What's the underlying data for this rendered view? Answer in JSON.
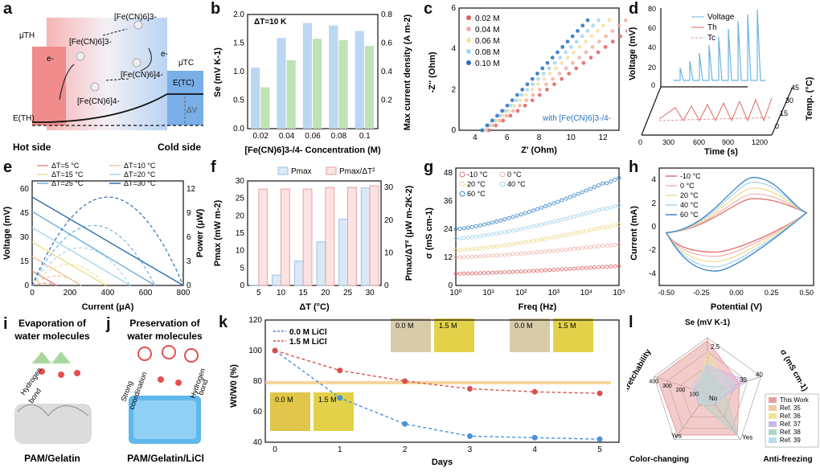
{
  "panels": {
    "a": {
      "letter": "a",
      "mu_th": "μ̄TH",
      "mu_tc": "μ̄TC",
      "fe3_top": "[Fe(CN)6]3-",
      "fe3_left": "[Fe(CN)6]3-",
      "fe4_mid": "[Fe(CN)6]4-",
      "fe4_bot": "[Fe(CN)6]4-",
      "e_left": "e-",
      "e_right": "e-",
      "eth": "E(TH)",
      "etc": "E(TC)",
      "dv": "ΔV",
      "hot": "Hot side",
      "cold": "Cold side"
    },
    "b": {
      "letter": "b",
      "dt": "ΔT=10 K"
    },
    "c": {
      "letter": "c",
      "note": "with [Fe(CN)6]3-/4-"
    },
    "d": {
      "letter": "d",
      "leg_v": "Voltage",
      "leg_th": "Th",
      "leg_tc": "Tc",
      "ylabel": "Voltage (mV)",
      "xlabel": "Time (s)",
      "zlabel": "Temp. (°C)",
      "yticks": [
        "0",
        "20",
        "40",
        "60",
        "80"
      ],
      "xticks": [
        "0",
        "300",
        "600",
        "900",
        "1200"
      ],
      "zticks": [
        "0",
        "15",
        "30",
        "45"
      ]
    },
    "e": {
      "letter": "e"
    },
    "f": {
      "letter": "f",
      "leg1": "Pmax",
      "leg2": "Pmax/ΔT²"
    },
    "g": {
      "letter": "g"
    },
    "h": {
      "letter": "h"
    },
    "i": {
      "letter": "i",
      "title1": "Evaporation of",
      "title2": "water molecules",
      "hb1": "Hydrogen",
      "hb2": "bond",
      "caption": "PAM/Gelatin"
    },
    "j": {
      "letter": "j",
      "title1": "Preservation of",
      "title2": "water molecules",
      "sc1": "Strong",
      "sc2": "coordination",
      "hb1": "Hydrogen",
      "hb2": "bond",
      "caption": "PAM/Gelatin/LiCl"
    },
    "k": {
      "letter": "k",
      "photo_labels": [
        "0.0 M",
        "1.5 M",
        "0.0 M",
        "1.5 M",
        "0.0 M",
        "1.5 M"
      ]
    },
    "l": {
      "letter": "l",
      "axes": [
        "Se (mV K-1)",
        "σ (mS cm-1)",
        "Anti-freezing",
        "Color-changing",
        "Stretchability"
      ],
      "yes": "Yes",
      "no": "No",
      "ticks_se": [
        "2.5"
      ],
      "ticks_sig": [
        "30",
        "40"
      ],
      "ticks_str": [
        "100",
        "200",
        "300",
        "400"
      ],
      "legend": [
        "This Work",
        "Ref. 35",
        "Ref. 36",
        "Ref. 37",
        "Ref. 38",
        "Ref. 39"
      ],
      "colors": [
        "#e8a0a0",
        "#f3c7a0",
        "#f1e39a",
        "#c9b7e6",
        "#a9d6c6",
        "#b9dcef"
      ]
    }
  },
  "chart_data": [
    {
      "panel": "b",
      "type": "bar",
      "title": "",
      "categories": [
        "0.02",
        "0.04",
        "0.06",
        "0.08",
        "0.1"
      ],
      "xlabel": "[Fe(CN)6]3-/4- Concentration (M)",
      "series": [
        {
          "name": "Se",
          "axis": "left",
          "values": [
            1.07,
            1.59,
            1.85,
            1.81,
            1.71
          ]
        },
        {
          "name": "Max current density",
          "axis": "right",
          "values": [
            0.29,
            0.48,
            0.63,
            0.62,
            0.58
          ]
        }
      ],
      "ylabel": "Se (mV K-1)",
      "ylim": [
        0,
        2
      ],
      "yticks": [
        "0.0",
        "0.5",
        "1.0",
        "1.5",
        "2.0"
      ],
      "y2label": "Max current density (A m-2)",
      "y2lim": [
        0,
        0.8
      ],
      "y2ticks": [
        "0.2",
        "0.4",
        "0.6",
        "0.8"
      ]
    },
    {
      "panel": "c",
      "type": "scatter",
      "xlabel": "Z' (Ohm)",
      "ylabel": "-Z'' (Ohm)",
      "xlim": [
        3,
        13
      ],
      "ylim": [
        0,
        6
      ],
      "xticks": [
        "4",
        "6",
        "8",
        "10",
        "12"
      ],
      "yticks": [
        "0",
        "2",
        "4",
        "6"
      ],
      "series": [
        {
          "name": "0.02 M",
          "color": "#e06060"
        },
        {
          "name": "0.04 M",
          "color": "#f0b0a8"
        },
        {
          "name": "0.06 M",
          "color": "#f3e0a0"
        },
        {
          "name": "0.08 M",
          "color": "#a8d4f0"
        },
        {
          "name": "0.10 M",
          "color": "#2a6fb8"
        }
      ]
    },
    {
      "panel": "e",
      "type": "line",
      "xlabel": "Current (μA)",
      "ylabel": "Voltage (mV)",
      "y2label": "Power (μW)",
      "xlim": [
        0,
        800
      ],
      "ylim": [
        0,
        65
      ],
      "y2lim": [
        0,
        13
      ],
      "xticks": [
        "0",
        "200",
        "400",
        "600",
        "800"
      ],
      "yticks": [
        "0",
        "15",
        "30",
        "45",
        "60"
      ],
      "y2ticks": [
        "0",
        "3",
        "6",
        "9",
        "12"
      ],
      "series": [
        {
          "name": "ΔT=5 °C",
          "color": "#e38a8a",
          "voc": 9,
          "isc": 130
        },
        {
          "name": "ΔT=10 °C",
          "color": "#f0c59a",
          "voc": 18,
          "isc": 260
        },
        {
          "name": "ΔT=15 °C",
          "color": "#ede08e",
          "voc": 27,
          "isc": 390
        },
        {
          "name": "ΔT=20 °C",
          "color": "#a9d6ee",
          "voc": 36,
          "isc": 520
        },
        {
          "name": "ΔT=25 °C",
          "color": "#6fb0e0",
          "voc": 46,
          "isc": 650
        },
        {
          "name": "ΔT=30 °C",
          "color": "#2f6db0",
          "voc": 55,
          "isc": 800
        }
      ]
    },
    {
      "panel": "f",
      "type": "bar",
      "xlabel": "ΔT (°C)",
      "ylabel": "Pmax (mW m-2)",
      "y2label": "Pmax/ΔT² (μW m-2K-2)",
      "categories": [
        "5",
        "10",
        "15",
        "20",
        "25",
        "30"
      ],
      "series": [
        {
          "name": "Pmax",
          "values": [
            0.1,
            3,
            7,
            12.5,
            19,
            28
          ]
        },
        {
          "name": "Pmax/ΔT²",
          "values": [
            29.5,
            29.5,
            29.5,
            30,
            30,
            30.5
          ]
        }
      ],
      "ylim": [
        0,
        30
      ],
      "y2lim": [
        0,
        32
      ],
      "yticks": [
        "0",
        "5",
        "10",
        "15",
        "20",
        "25",
        "30"
      ],
      "y2ticks": [
        "0",
        "10",
        "20",
        "30"
      ]
    },
    {
      "panel": "g",
      "type": "scatter",
      "xlabel": "Freq (Hz)",
      "ylabel": "σ (mS cm-1)",
      "xscale": "log",
      "xlim": [
        1,
        100000
      ],
      "ylim": [
        0,
        50
      ],
      "xticks": [
        "10⁰",
        "10¹",
        "10²",
        "10³",
        "10⁴",
        "10⁵"
      ],
      "yticks": [
        "0",
        "12",
        "24",
        "36",
        "48"
      ],
      "series": [
        {
          "name": "-10 °C",
          "color": "#e07070",
          "start": 5,
          "end": 8
        },
        {
          "name": "0 °C",
          "color": "#f0b8b0",
          "start": 12,
          "end": 17
        },
        {
          "name": "20 °C",
          "color": "#f0dc90",
          "start": 15,
          "end": 25
        },
        {
          "name": "40 °C",
          "color": "#a8d4f0",
          "start": 20,
          "end": 33
        },
        {
          "name": "60 °C",
          "color": "#3d86c8",
          "start": 24,
          "end": 44
        }
      ]
    },
    {
      "panel": "h",
      "type": "line",
      "xlabel": "Potential (V)",
      "ylabel": "Current (mA)",
      "xlim": [
        -0.5,
        0.5
      ],
      "ylim": [
        -5,
        5
      ],
      "xticks": [
        "-0.50",
        "-0.25",
        "0.00",
        "0.25",
        "0.50"
      ],
      "yticks": [
        "-4",
        "-2",
        "0",
        "2",
        "4"
      ],
      "series": [
        {
          "name": "-10 °C",
          "color": "#e07070",
          "peak": 2.4
        },
        {
          "name": "0 °C",
          "color": "#f0b8b0",
          "peak": 2.8
        },
        {
          "name": "20 °C",
          "color": "#f0dc90",
          "peak": 3.3
        },
        {
          "name": "40 °C",
          "color": "#a8d4f0",
          "peak": 3.8
        },
        {
          "name": "60 °C",
          "color": "#3d86c8",
          "peak": 4.2
        }
      ]
    },
    {
      "panel": "k",
      "type": "line",
      "xlabel": "Days",
      "ylabel": "Wt/W0 (%)",
      "xlim": [
        0,
        5
      ],
      "ylim": [
        40,
        120
      ],
      "xticks": [
        "0",
        "1",
        "2",
        "3",
        "4",
        "5"
      ],
      "yticks": [
        "40",
        "60",
        "80",
        "100",
        "120"
      ],
      "series": [
        {
          "name": "0.0 M LiCl",
          "color": "#4a90d9",
          "x": [
            0,
            1,
            2,
            3,
            4,
            5
          ],
          "values": [
            100,
            69,
            52,
            44,
            43,
            42
          ]
        },
        {
          "name": "1.5 M LiCl",
          "color": "#d95050",
          "x": [
            0,
            1,
            2,
            3,
            4,
            5
          ],
          "values": [
            100,
            87,
            80,
            75,
            73,
            72
          ]
        }
      ]
    }
  ]
}
